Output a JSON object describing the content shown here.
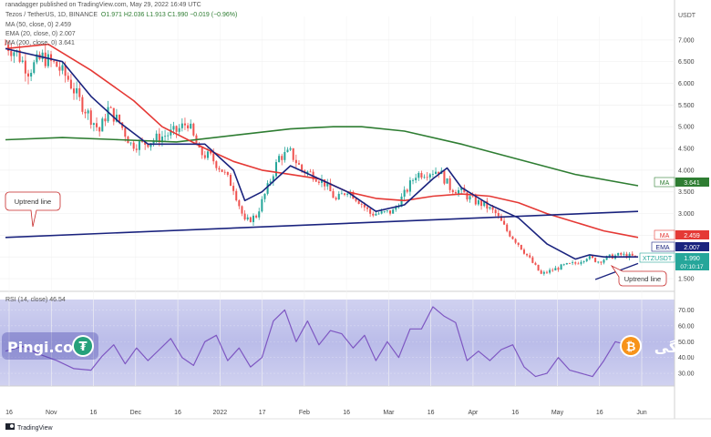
{
  "header": {
    "publisher": "ranadagger published on TradingView.com, May 29, 2022 16:49 UTC",
    "symbol": "Tezos / TetherUS, 1D, BINANCE",
    "ohlc": "O1.971  H2.036  L1.913  C1.990  −0.019 (−0.96%)",
    "ma_line": "MA (50, close, 0)  2.459",
    "ema_line": "EMA (20, close, 0)  2.007",
    "ma2_line": "MA (200, close, 0)  3.641",
    "rsi_line": "RSI (14, close)  46.54",
    "currency": "USDT"
  },
  "badges": {
    "ma200_tag": "MA",
    "ma200_val": "3.641",
    "ma50_tag": "MA",
    "ma50_val": "2.459",
    "ema_tag": "EMA",
    "ema_val": "2.007",
    "ticker": "XTZUSDT",
    "price": "1.990",
    "countdown": "07:10:17"
  },
  "annotations": {
    "uptrend_left": "Uptrend line",
    "uptrend_right": "Uptrend line"
  },
  "watermarks": {
    "left_brand": "Pingi.co",
    "right_brand": "پینگی"
  },
  "footer": {
    "tradingview": "TradingView"
  },
  "colors": {
    "up": "#26a69a",
    "down": "#ef5350",
    "ma50": "#e53935",
    "ema20": "#1a237e",
    "ma200": "#2e7d32",
    "rsi": "#7e57c2",
    "trend": "#1a237e"
  },
  "chart_data": {
    "type": "candlestick",
    "price_axis_ticks": [
      "7.000",
      "6.500",
      "6.000",
      "5.500",
      "5.000",
      "4.500",
      "4.000",
      "3.500",
      "3.000",
      "2.500",
      "2.000",
      "1.500"
    ],
    "rsi_axis_ticks": [
      "70.00",
      "60.00",
      "50.00",
      "40.00",
      "30.00"
    ],
    "time_labels": [
      "16",
      "Nov",
      "16",
      "Dec",
      "16",
      "2022",
      "17",
      "Feb",
      "16",
      "Mar",
      "16",
      "Apr",
      "16",
      "May",
      "16",
      "Jun"
    ],
    "ylim": [
      1.25,
      7.5
    ],
    "rsi_ylim": [
      22,
      76
    ],
    "close_series": {
      "x": [
        0,
        4,
        8,
        13,
        18,
        22,
        26,
        30,
        33,
        36,
        40,
        44,
        48,
        52,
        56,
        60,
        64,
        68,
        72,
        76,
        80,
        84,
        88,
        92,
        96,
        100,
        104,
        108,
        112,
        116,
        120,
        124,
        128,
        132,
        136,
        140,
        144,
        148,
        152,
        156,
        160,
        164,
        168,
        172,
        176,
        180,
        184,
        188,
        192,
        196,
        200,
        204,
        208,
        212,
        216,
        222
      ],
      "y": [
        6.9,
        6.7,
        6.3,
        6.6,
        6.4,
        6.1,
        5.6,
        5.2,
        4.9,
        5.4,
        5.1,
        4.6,
        4.6,
        4.7,
        4.8,
        4.9,
        5.1,
        4.4,
        4.3,
        4.0,
        3.6,
        2.8,
        2.95,
        3.6,
        4.3,
        4.4,
        4.0,
        3.9,
        3.7,
        3.3,
        3.55,
        3.3,
        3.0,
        3.0,
        3.05,
        3.45,
        3.9,
        3.95,
        4.0,
        3.6,
        3.5,
        3.3,
        3.2,
        3.0,
        2.6,
        2.3,
        1.95,
        1.6,
        1.7,
        1.8,
        1.85,
        2.0,
        1.9,
        2.0,
        2.05,
        1.99
      ]
    },
    "candle_count": 222,
    "ema20": {
      "x": [
        0,
        20,
        30,
        40,
        50,
        60,
        70,
        80,
        84,
        90,
        100,
        110,
        120,
        130,
        140,
        150,
        155,
        160,
        170,
        180,
        190,
        200,
        205,
        210,
        222
      ],
      "y": [
        6.8,
        6.5,
        5.7,
        5.1,
        4.6,
        4.6,
        4.6,
        4.0,
        3.3,
        3.5,
        4.1,
        3.8,
        3.5,
        3.05,
        3.2,
        3.8,
        4.05,
        3.6,
        3.2,
        2.9,
        2.3,
        1.95,
        2.05,
        2.0,
        2.0
      ]
    },
    "ma50": {
      "x": [
        0,
        15,
        30,
        45,
        55,
        70,
        80,
        90,
        100,
        110,
        120,
        130,
        140,
        150,
        160,
        170,
        180,
        190,
        200,
        210,
        222
      ],
      "y": [
        6.8,
        6.9,
        6.3,
        5.6,
        5.0,
        4.5,
        4.2,
        4.0,
        3.9,
        3.8,
        3.5,
        3.35,
        3.3,
        3.4,
        3.45,
        3.4,
        3.25,
        3.0,
        2.8,
        2.6,
        2.45
      ]
    },
    "ma200": {
      "x": [
        0,
        20,
        40,
        60,
        80,
        100,
        115,
        125,
        140,
        160,
        180,
        200,
        222
      ],
      "y": [
        4.7,
        4.75,
        4.7,
        4.65,
        4.8,
        4.95,
        5.0,
        5.0,
        4.9,
        4.6,
        4.25,
        3.9,
        3.64
      ]
    },
    "trendline_main": {
      "x": [
        0,
        222
      ],
      "y": [
        2.45,
        3.05
      ]
    },
    "trendline_short": {
      "x": [
        207,
        222
      ],
      "y": [
        1.48,
        1.85
      ]
    },
    "rsi": {
      "x": [
        0,
        6,
        12,
        18,
        24,
        30,
        34,
        38,
        42,
        46,
        50,
        54,
        58,
        62,
        66,
        70,
        74,
        78,
        82,
        86,
        90,
        94,
        98,
        102,
        106,
        110,
        114,
        118,
        122,
        126,
        130,
        134,
        138,
        142,
        146,
        150,
        154,
        158,
        162,
        166,
        170,
        174,
        178,
        182,
        186,
        190,
        194,
        198,
        202,
        206,
        210,
        214,
        218,
        222
      ],
      "y": [
        44,
        47,
        42,
        38,
        33,
        32,
        41,
        48,
        36,
        46,
        38,
        45,
        52,
        40,
        35,
        50,
        54,
        38,
        46,
        34,
        40,
        63,
        70,
        50,
        63,
        48,
        57,
        55,
        46,
        54,
        38,
        50,
        40,
        58,
        58,
        72,
        66,
        62,
        38,
        44,
        38,
        45,
        48,
        34,
        28,
        30,
        40,
        32,
        30,
        28,
        38,
        50,
        48,
        46
      ]
    }
  }
}
